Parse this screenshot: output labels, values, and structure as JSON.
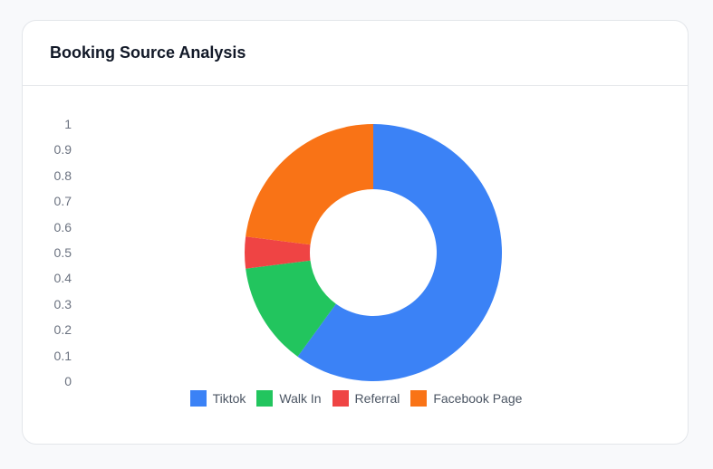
{
  "card": {
    "title": "Booking Source Analysis"
  },
  "chart_data": {
    "type": "pie",
    "donut": true,
    "title": "Booking Source Analysis",
    "categories": [
      "Tiktok",
      "Walk In",
      "Referral",
      "Facebook Page"
    ],
    "values": [
      60,
      13,
      4,
      23
    ],
    "colors": [
      "#3b82f6",
      "#22c55e",
      "#ef4444",
      "#f97316"
    ],
    "y_ticks": [
      "1",
      "0.9",
      "0.8",
      "0.7",
      "0.6",
      "0.5",
      "0.4",
      "0.3",
      "0.2",
      "0.1",
      "0"
    ],
    "legend_position": "bottom"
  }
}
